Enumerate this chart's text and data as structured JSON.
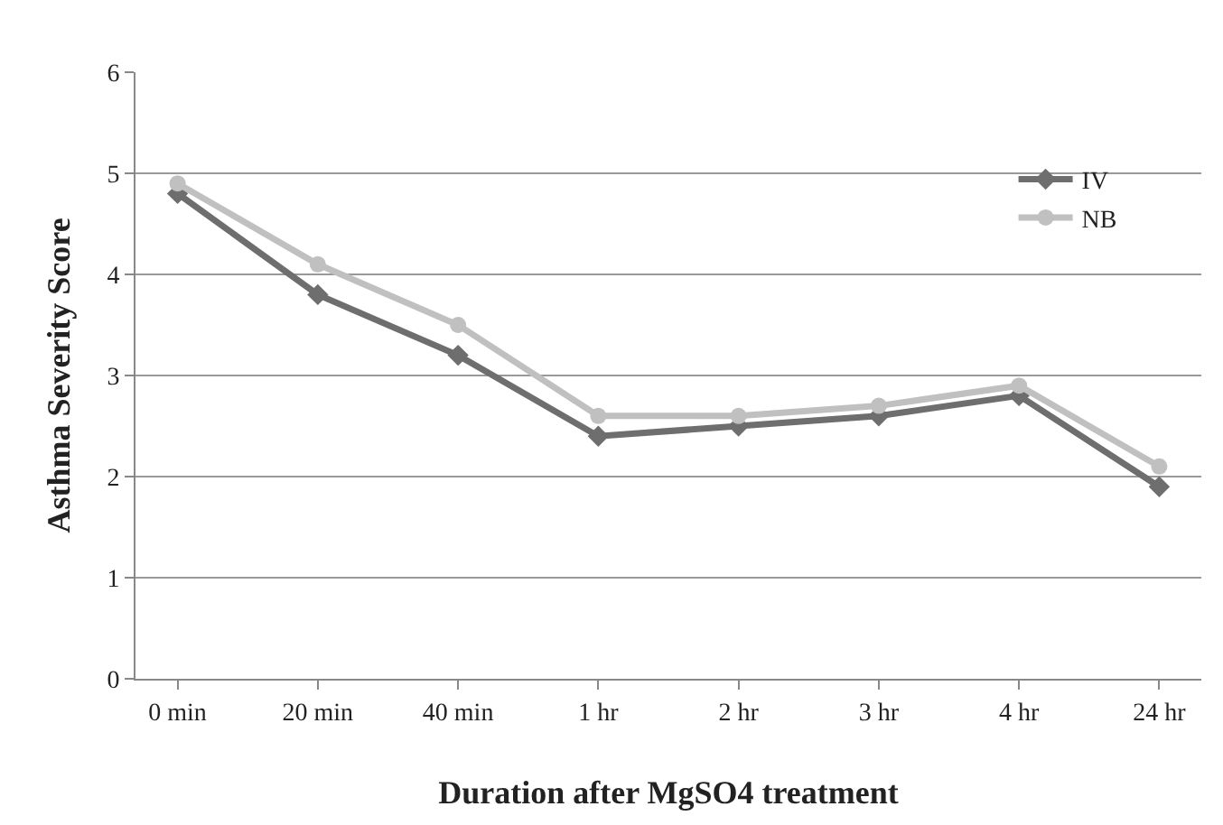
{
  "chart_data": {
    "type": "line",
    "xlabel": "Duration after MgSO4 treatment",
    "ylabel": "Asthma Severity Score",
    "categories": [
      "0 min",
      "20 min",
      "40 min",
      "1 hr",
      "2 hr",
      "3 hr",
      "4 hr",
      "24 hr"
    ],
    "series": [
      {
        "name": "IV",
        "color": "#6e6e6e",
        "marker": "diamond",
        "values": [
          4.8,
          3.8,
          3.2,
          2.4,
          2.5,
          2.6,
          2.8,
          1.9
        ]
      },
      {
        "name": "NB",
        "color": "#c0c0c0",
        "marker": "circle",
        "values": [
          4.9,
          4.1,
          3.5,
          2.6,
          2.6,
          2.7,
          2.9,
          2.1
        ]
      }
    ],
    "ylim": [
      0,
      6
    ],
    "yticks": [
      0,
      1,
      2,
      3,
      4,
      5,
      6
    ],
    "grid": "y",
    "legend": "top right",
    "line_style": "solid"
  }
}
